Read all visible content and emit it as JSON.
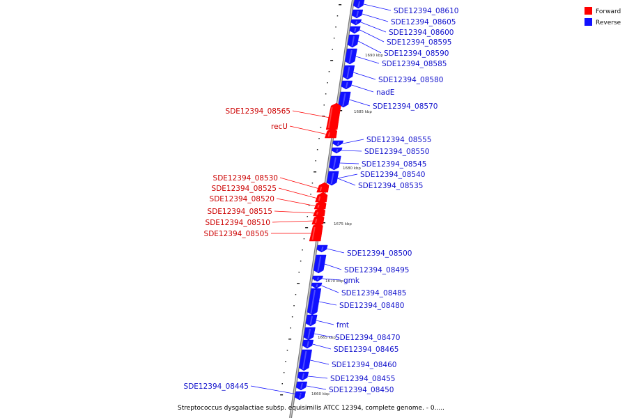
{
  "colors": {
    "forward": "#ff0000",
    "reverse": "#1111ff",
    "backbone": "#999999"
  },
  "legend": [
    {
      "key": "forward",
      "label": "Forward",
      "color": "#ff0000"
    },
    {
      "key": "reverse",
      "label": "Reverse",
      "color": "#1111ff"
    }
  ],
  "caption": "Streptococcus dysgalactiae subsp. equisimilis ATCC 12394, complete genome. - 0.....",
  "scale_ticks": [
    "1690 kbp",
    "1685 kbp",
    "1680 kbp",
    "1675 kbp",
    "1670 kbp",
    "1665 kbp",
    "1660 kbp"
  ],
  "genes": [
    {
      "name": "SDE12394_08610",
      "strand": "reverse"
    },
    {
      "name": "SDE12394_08605",
      "strand": "reverse"
    },
    {
      "name": "SDE12394_08600",
      "strand": "reverse"
    },
    {
      "name": "SDE12394_08595",
      "strand": "reverse"
    },
    {
      "name": "SDE12394_08590",
      "strand": "reverse"
    },
    {
      "name": "SDE12394_08585",
      "strand": "reverse"
    },
    {
      "name": "SDE12394_08580",
      "strand": "reverse"
    },
    {
      "name": "nadE",
      "strand": "reverse"
    },
    {
      "name": "SDE12394_08570",
      "strand": "reverse"
    },
    {
      "name": "SDE12394_08565",
      "strand": "forward"
    },
    {
      "name": "recU",
      "strand": "forward"
    },
    {
      "name": "SDE12394_08555",
      "strand": "reverse"
    },
    {
      "name": "SDE12394_08550",
      "strand": "reverse"
    },
    {
      "name": "SDE12394_08545",
      "strand": "reverse"
    },
    {
      "name": "SDE12394_08540",
      "strand": "reverse"
    },
    {
      "name": "SDE12394_08535",
      "strand": "reverse"
    },
    {
      "name": "SDE12394_08530",
      "strand": "forward"
    },
    {
      "name": "SDE12394_08525",
      "strand": "forward"
    },
    {
      "name": "SDE12394_08520",
      "strand": "forward"
    },
    {
      "name": "SDE12394_08515",
      "strand": "forward"
    },
    {
      "name": "SDE12394_08510",
      "strand": "forward"
    },
    {
      "name": "SDE12394_08505",
      "strand": "forward"
    },
    {
      "name": "SDE12394_08500",
      "strand": "reverse"
    },
    {
      "name": "SDE12394_08495",
      "strand": "reverse"
    },
    {
      "name": "gmk",
      "strand": "reverse"
    },
    {
      "name": "SDE12394_08485",
      "strand": "reverse"
    },
    {
      "name": "SDE12394_08480",
      "strand": "reverse"
    },
    {
      "name": "fmt",
      "strand": "reverse"
    },
    {
      "name": "SDE12394_08470",
      "strand": "reverse"
    },
    {
      "name": "SDE12394_08465",
      "strand": "reverse"
    },
    {
      "name": "SDE12394_08460",
      "strand": "reverse"
    },
    {
      "name": "SDE12394_08455",
      "strand": "reverse"
    },
    {
      "name": "SDE12394_08450",
      "strand": "reverse"
    },
    {
      "name": "SDE12394_08445",
      "strand": "reverse"
    }
  ]
}
